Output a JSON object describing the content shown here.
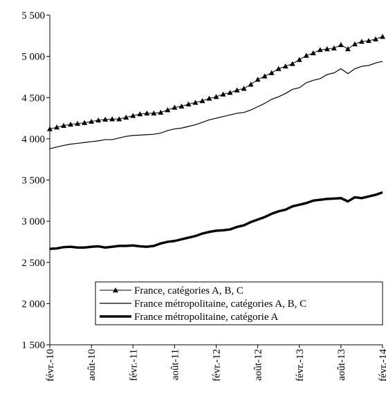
{
  "chart_data": {
    "type": "line",
    "categories": [
      "févr.-10",
      null,
      null,
      null,
      null,
      null,
      "août-10",
      null,
      null,
      null,
      null,
      null,
      "févr.-11",
      null,
      null,
      null,
      null,
      null,
      "août-11",
      null,
      null,
      null,
      null,
      null,
      "févr.-12",
      null,
      null,
      null,
      null,
      null,
      "août-12",
      null,
      null,
      null,
      null,
      null,
      "févr.-13",
      null,
      null,
      null,
      null,
      null,
      "août-13",
      null,
      null,
      null,
      null,
      null,
      "févr.-14"
    ],
    "series": [
      {
        "name": "France, catégories A, B, C",
        "color": "#000000",
        "linewidth": 1,
        "marker": "triangle",
        "values": [
          4120,
          4140,
          4160,
          4175,
          4185,
          4195,
          4210,
          4225,
          4235,
          4240,
          4240,
          4260,
          4280,
          4300,
          4310,
          4310,
          4320,
          4350,
          4380,
          4395,
          4420,
          4440,
          4460,
          4490,
          4510,
          4540,
          4560,
          4590,
          4610,
          4660,
          4720,
          4760,
          4800,
          4850,
          4880,
          4910,
          4960,
          5010,
          5040,
          5080,
          5090,
          5100,
          5140,
          5090,
          5150,
          5180,
          5190,
          5210,
          5240
        ]
      },
      {
        "name": "France métropolitaine, catégories A, B, C",
        "color": "#000000",
        "linewidth": 1.2,
        "values": [
          3880,
          3900,
          3920,
          3935,
          3945,
          3955,
          3965,
          3975,
          3990,
          3990,
          4010,
          4030,
          4040,
          4045,
          4050,
          4055,
          4070,
          4100,
          4120,
          4130,
          4150,
          4170,
          4200,
          4230,
          4250,
          4270,
          4290,
          4310,
          4320,
          4350,
          4390,
          4430,
          4480,
          4510,
          4550,
          4600,
          4620,
          4680,
          4710,
          4730,
          4780,
          4800,
          4850,
          4790,
          4850,
          4880,
          4890,
          4920,
          4940
        ]
      },
      {
        "name": "France métropolitaine, catégorie A",
        "color": "#000000",
        "linewidth": 3.5,
        "values": [
          2665,
          2670,
          2685,
          2690,
          2680,
          2680,
          2690,
          2695,
          2680,
          2690,
          2700,
          2700,
          2705,
          2695,
          2690,
          2700,
          2730,
          2750,
          2760,
          2780,
          2800,
          2820,
          2850,
          2870,
          2885,
          2890,
          2900,
          2930,
          2950,
          2990,
          3020,
          3050,
          3090,
          3120,
          3140,
          3180,
          3200,
          3220,
          3250,
          3260,
          3270,
          3275,
          3280,
          3240,
          3290,
          3280,
          3300,
          3320,
          3350
        ]
      }
    ],
    "ylim": [
      1500,
      5500
    ],
    "yticks": [
      {
        "value": 1500,
        "label": "1 500"
      },
      {
        "value": 2000,
        "label": "2 000"
      },
      {
        "value": 2500,
        "label": "2 500"
      },
      {
        "value": 3000,
        "label": "3 000"
      },
      {
        "value": 3500,
        "label": "3 500"
      },
      {
        "value": 4000,
        "label": "4 000"
      },
      {
        "value": 4500,
        "label": "4 500"
      },
      {
        "value": 5000,
        "label": "5 000"
      },
      {
        "value": 5500,
        "label": "5 500"
      }
    ],
    "grid": false,
    "legend": "lower left"
  }
}
